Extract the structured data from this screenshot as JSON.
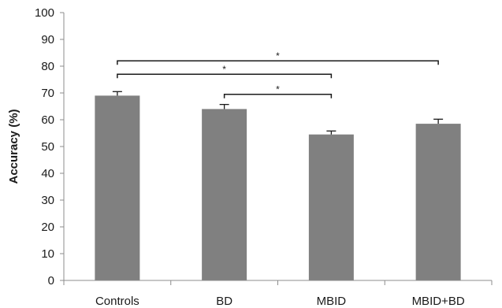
{
  "chart_data": {
    "type": "bar",
    "categories": [
      "Controls",
      "BD",
      "MBID",
      "MBID+BD"
    ],
    "values": [
      69,
      64,
      54.5,
      58.5
    ],
    "errors": [
      1.5,
      1.7,
      1.3,
      1.7
    ],
    "ylabel": "Accuracy (%)",
    "xlabel": "",
    "ylim": [
      0,
      100
    ],
    "yticks": [
      0,
      10,
      20,
      30,
      40,
      50,
      60,
      70,
      80,
      90,
      100
    ],
    "grid": false,
    "bar_color": "#808080",
    "axis_color": "#8c8c8c",
    "significance": [
      {
        "from": "Controls",
        "to": "MBID+BD",
        "y": 82,
        "label": "*"
      },
      {
        "from": "Controls",
        "to": "MBID",
        "y": 77,
        "label": "*"
      },
      {
        "from": "BD",
        "to": "MBID",
        "y": 69.5,
        "label": "*"
      }
    ]
  }
}
